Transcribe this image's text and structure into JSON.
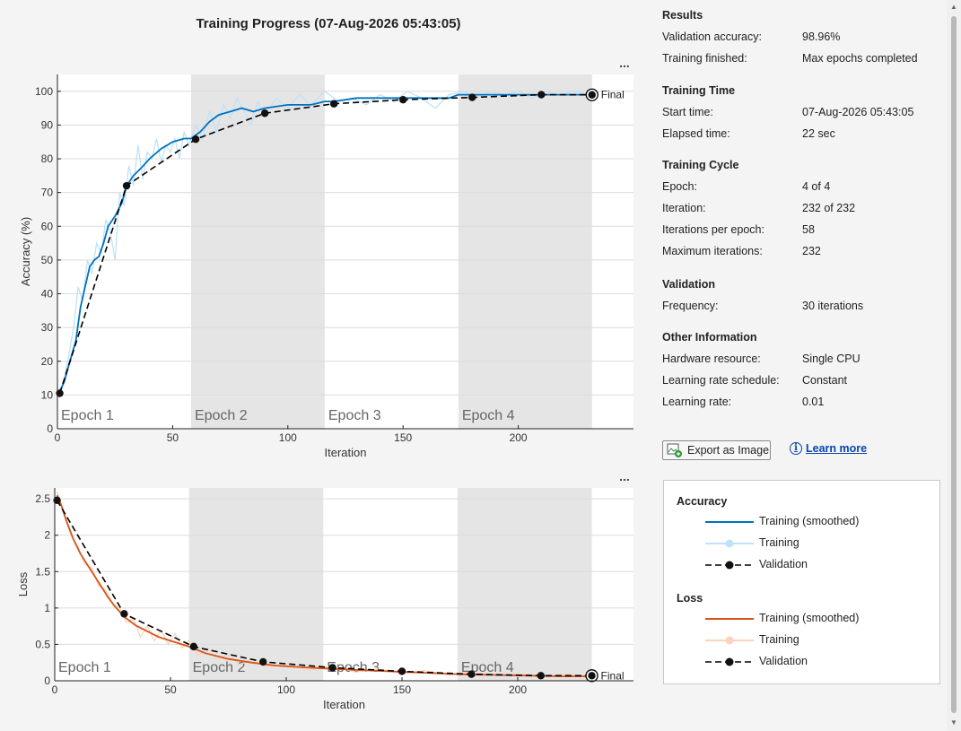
{
  "chart_data": [
    {
      "type": "line",
      "title": "Training Progress (07-Aug-2026 05:43:05)",
      "xlabel": "Iteration",
      "ylabel": "Accuracy (%)",
      "xlim": [
        0,
        250
      ],
      "ylim": [
        0,
        105
      ],
      "xticks": [
        0,
        50,
        100,
        150,
        200
      ],
      "yticks": [
        0,
        10,
        20,
        30,
        40,
        50,
        60,
        70,
        80,
        90,
        100
      ],
      "grid": true,
      "epochs": [
        {
          "label": "Epoch 1",
          "start": 0,
          "end": 58,
          "shaded": false
        },
        {
          "label": "Epoch 2",
          "start": 58,
          "end": 116,
          "shaded": true
        },
        {
          "label": "Epoch 3",
          "start": 116,
          "end": 174,
          "shaded": false
        },
        {
          "label": "Epoch 4",
          "start": 174,
          "end": 232,
          "shaded": true
        }
      ],
      "final_label": "Final",
      "series": [
        {
          "name": "Training (smoothed)",
          "color": "#0072BD",
          "x": [
            1,
            3,
            5,
            8,
            10,
            12,
            14,
            16,
            18,
            20,
            22,
            25,
            28,
            30,
            33,
            36,
            40,
            45,
            50,
            55,
            58,
            62,
            66,
            70,
            75,
            80,
            85,
            90,
            100,
            110,
            116,
            120,
            130,
            140,
            150,
            160,
            170,
            174,
            180,
            190,
            200,
            210,
            220,
            232
          ],
          "y": [
            11,
            14,
            19,
            26,
            36,
            42,
            48,
            50,
            51,
            55,
            60,
            63,
            67,
            72,
            75,
            77,
            80,
            83,
            85,
            86,
            86,
            88,
            91,
            93,
            94,
            95,
            94,
            95,
            96,
            96,
            97,
            97,
            98,
            98,
            98,
            98,
            98,
            99,
            99,
            99,
            99,
            99,
            99,
            99
          ]
        },
        {
          "name": "Training",
          "color": "#BFE2FA",
          "x": [
            1,
            3,
            5,
            7,
            9,
            11,
            13,
            15,
            17,
            19,
            21,
            23,
            25,
            27,
            29,
            31,
            33,
            35,
            37,
            39,
            41,
            43,
            45,
            47,
            49,
            51,
            53,
            55,
            57,
            60,
            63,
            66,
            69,
            72,
            75,
            78,
            81,
            84,
            87,
            90,
            95,
            100,
            105,
            110,
            116,
            122,
            128,
            134,
            140,
            146,
            152,
            158,
            164,
            170,
            176,
            182,
            188,
            194,
            200,
            206,
            212,
            218,
            224,
            232
          ],
          "y": [
            10,
            15,
            22,
            30,
            42,
            38,
            50,
            46,
            55,
            52,
            62,
            58,
            50,
            70,
            66,
            78,
            72,
            84,
            74,
            82,
            80,
            86,
            79,
            84,
            82,
            86,
            80,
            88,
            84,
            90,
            86,
            94,
            88,
            96,
            92,
            98,
            94,
            90,
            97,
            93,
            98,
            95,
            99,
            96,
            100,
            97,
            98,
            96,
            99,
            97,
            100,
            98,
            95,
            99,
            100,
            98,
            100,
            99,
            100,
            98,
            100,
            99,
            100,
            99
          ]
        },
        {
          "name": "Validation",
          "color": "#000000",
          "x": [
            1,
            30,
            60,
            90,
            120,
            150,
            180,
            210,
            232
          ],
          "y": [
            10.5,
            72,
            85.8,
            93.5,
            96.3,
            97.5,
            98.2,
            99,
            98.96
          ]
        }
      ]
    },
    {
      "type": "line",
      "xlabel": "Iteration",
      "ylabel": "Loss",
      "xlim": [
        0,
        250
      ],
      "ylim": [
        0,
        2.65
      ],
      "xticks": [
        0,
        50,
        100,
        150,
        200
      ],
      "yticks": [
        0,
        0.5,
        1,
        1.5,
        2,
        2.5
      ],
      "grid": true,
      "epochs": [
        {
          "label": "Epoch 1",
          "start": 0,
          "end": 58,
          "shaded": false
        },
        {
          "label": "Epoch 2",
          "start": 58,
          "end": 116,
          "shaded": true
        },
        {
          "label": "Epoch 3",
          "start": 116,
          "end": 174,
          "shaded": false
        },
        {
          "label": "Epoch 4",
          "start": 174,
          "end": 232,
          "shaded": true
        }
      ],
      "final_label": "Final",
      "series": [
        {
          "name": "Training (smoothed)",
          "color": "#D95319",
          "x": [
            1,
            3,
            5,
            8,
            11,
            14,
            17,
            20,
            23,
            26,
            30,
            35,
            40,
            45,
            50,
            58,
            65,
            75,
            85,
            95,
            105,
            116,
            130,
            145,
            160,
            174,
            190,
            205,
            220,
            232
          ],
          "y": [
            2.55,
            2.4,
            2.2,
            1.95,
            1.75,
            1.6,
            1.45,
            1.3,
            1.15,
            1.02,
            0.88,
            0.76,
            0.68,
            0.6,
            0.55,
            0.47,
            0.38,
            0.3,
            0.25,
            0.21,
            0.19,
            0.17,
            0.15,
            0.13,
            0.11,
            0.09,
            0.08,
            0.07,
            0.06,
            0.06
          ]
        },
        {
          "name": "Training",
          "color": "#FAD4BD",
          "x": [
            1,
            4,
            7,
            10,
            13,
            16,
            19,
            22,
            25,
            28,
            31,
            34,
            37,
            40,
            43,
            46,
            49,
            52,
            55,
            58,
            62,
            66,
            70,
            75,
            80,
            85,
            90,
            100,
            110,
            120,
            130,
            140,
            150,
            160,
            170,
            180,
            190,
            200,
            210,
            220,
            232
          ],
          "y": [
            2.6,
            2.3,
            2.0,
            1.85,
            1.6,
            1.55,
            1.3,
            1.25,
            1.05,
            1.0,
            0.8,
            0.85,
            0.6,
            0.75,
            0.55,
            0.7,
            0.5,
            0.65,
            0.45,
            0.55,
            0.35,
            0.45,
            0.3,
            0.35,
            0.22,
            0.3,
            0.2,
            0.22,
            0.15,
            0.2,
            0.12,
            0.16,
            0.1,
            0.14,
            0.08,
            0.12,
            0.07,
            0.1,
            0.06,
            0.09,
            0.06
          ]
        },
        {
          "name": "Validation",
          "color": "#000000",
          "x": [
            1,
            30,
            60,
            90,
            120,
            150,
            180,
            210,
            232
          ],
          "y": [
            2.48,
            0.92,
            0.47,
            0.26,
            0.18,
            0.13,
            0.09,
            0.07,
            0.07
          ]
        }
      ]
    }
  ],
  "results": {
    "title": "Results",
    "rows": [
      {
        "k": "Validation accuracy:",
        "v": "98.96%"
      },
      {
        "k": "Training finished:",
        "v": "Max epochs completed"
      }
    ]
  },
  "training_time": {
    "title": "Training Time",
    "rows": [
      {
        "k": "Start time:",
        "v": "07-Aug-2026 05:43:05"
      },
      {
        "k": "Elapsed time:",
        "v": "22 sec"
      }
    ]
  },
  "training_cycle": {
    "title": "Training Cycle",
    "rows": [
      {
        "k": "Epoch:",
        "v": "4 of 4"
      },
      {
        "k": "Iteration:",
        "v": "232 of 232"
      },
      {
        "k": "Iterations per epoch:",
        "v": "58"
      },
      {
        "k": "Maximum iterations:",
        "v": "232"
      }
    ]
  },
  "validation": {
    "title": "Validation",
    "rows": [
      {
        "k": "Frequency:",
        "v": "30 iterations"
      }
    ]
  },
  "other_info": {
    "title": "Other Information",
    "rows": [
      {
        "k": "Hardware resource:",
        "v": "Single CPU"
      },
      {
        "k": "Learning rate schedule:",
        "v": "Constant"
      },
      {
        "k": "Learning rate:",
        "v": "0.01"
      }
    ]
  },
  "actions": {
    "export_label": "Export as Image",
    "learn_more_label": "Learn more",
    "more_menu_glyph": "..."
  },
  "legend": {
    "accuracy": {
      "title": "Accuracy",
      "items": [
        "Training (smoothed)",
        "Training",
        "Validation"
      ],
      "colors": [
        "#0072BD",
        "#BFE2FA",
        "#000000"
      ]
    },
    "loss": {
      "title": "Loss",
      "items": [
        "Training (smoothed)",
        "Training",
        "Validation"
      ],
      "colors": [
        "#D95319",
        "#FAD4BD",
        "#000000"
      ]
    }
  }
}
